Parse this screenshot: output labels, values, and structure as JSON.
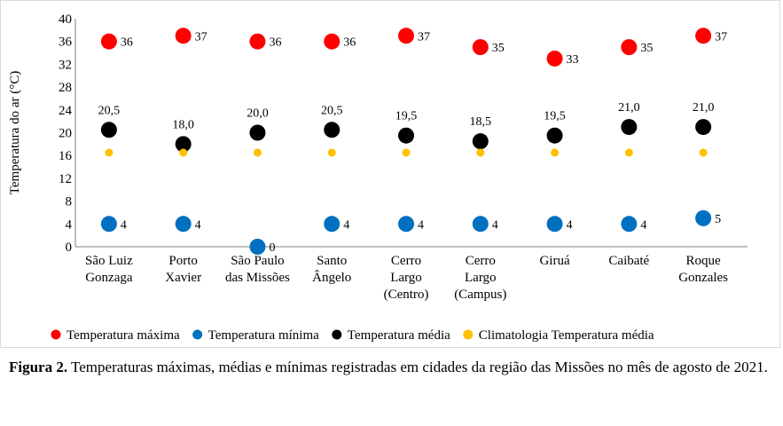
{
  "chart_data": {
    "type": "scatter",
    "ylabel": "Temperatura do ar (°C)",
    "yticks": [
      "0",
      "4",
      "8",
      "12",
      "16",
      "20",
      "24",
      "28",
      "32",
      "36",
      "40"
    ],
    "ylim": [
      0,
      40
    ],
    "grid": false,
    "legend_position": "bottom",
    "categories": [
      [
        "São Luiz",
        "Gonzaga"
      ],
      [
        "Porto",
        "Xavier"
      ],
      [
        "São Paulo",
        "das Missões"
      ],
      [
        "Santo",
        "Ângelo"
      ],
      [
        "Cerro",
        "Largo",
        "(Centro)"
      ],
      [
        "Cerro",
        "Largo",
        "(Campus)"
      ],
      [
        "Giruá"
      ],
      [
        "Caibaté"
      ],
      [
        "Roque",
        "Gonzales"
      ]
    ],
    "series": [
      {
        "name": "Temperatura máxima",
        "color": "#ff0000",
        "values": [
          36,
          37,
          36,
          36,
          37,
          35,
          33,
          35,
          37
        ],
        "labels": [
          "36",
          "37",
          "36",
          "36",
          "37",
          "35",
          "33",
          "35",
          "37"
        ]
      },
      {
        "name": "Temperatura mínima",
        "color": "#0070c0",
        "values": [
          4,
          4,
          0,
          4,
          4,
          4,
          4,
          4,
          5
        ],
        "labels": [
          "4",
          "4",
          "0",
          "4",
          "4",
          "4",
          "4",
          "4",
          "5"
        ]
      },
      {
        "name": "Temperatura média",
        "color": "#000000",
        "values": [
          20.5,
          18.0,
          20.0,
          20.5,
          19.5,
          18.5,
          19.5,
          21.0,
          21.0
        ],
        "labels": [
          "20,5",
          "18,0",
          "20,0",
          "20,5",
          "19,5",
          "18,5",
          "19,5",
          "21,0",
          "21,0"
        ]
      },
      {
        "name": "Climatologia Temperatura média",
        "color": "#ffc000",
        "values": [
          16.5,
          16.5,
          16.5,
          16.5,
          16.5,
          16.5,
          16.5,
          16.5,
          16.5
        ],
        "labels": []
      }
    ]
  },
  "caption": {
    "label": "Figura 2.",
    "text": " Temperaturas máximas, médias e mínimas registradas em cidades da região das Missões no mês de agosto de 2021."
  }
}
